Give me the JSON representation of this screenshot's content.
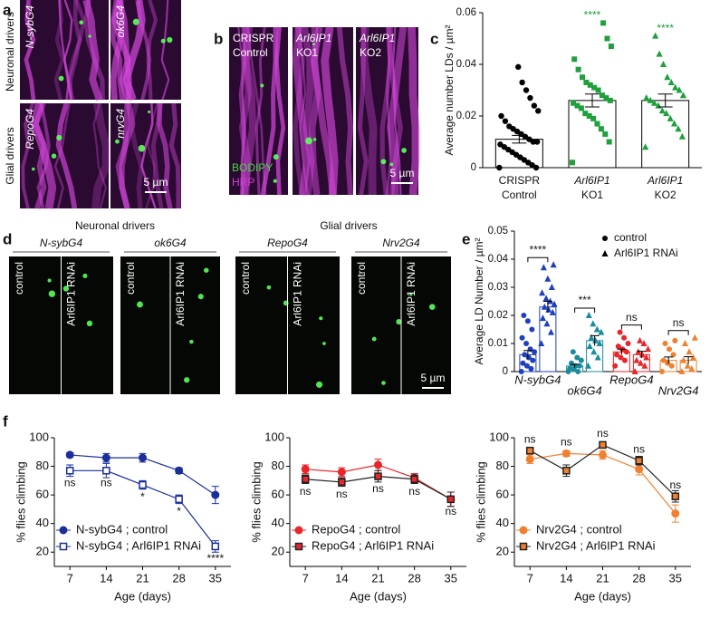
{
  "panel_labels": [
    "a",
    "b",
    "c",
    "d",
    "e",
    "f"
  ],
  "a": {
    "group_labels": [
      "Neuronal drivers",
      "Glial drivers"
    ],
    "image_labels": [
      "N-sybG4",
      "ok6G4",
      "RepoG4",
      "nrvG4"
    ],
    "scale": "5 µm"
  },
  "b": {
    "image_labels": [
      [
        "CRISPR",
        "Control"
      ],
      [
        "Arl6IP1",
        "KO1"
      ],
      [
        "Arl6IP1",
        "KO2"
      ]
    ],
    "stains": [
      "BODIPY",
      "HRP"
    ],
    "stain_colors": [
      "#3ddc3d",
      "#d040d8"
    ],
    "scale": "5 µm"
  },
  "c": {
    "type": "bar",
    "ylabel": "Average number LDs / µm²",
    "categories": [
      [
        "CRISPR",
        "Control"
      ],
      [
        "Arl6IP1",
        "KO1"
      ],
      [
        "Arl6IP1",
        "KO2"
      ]
    ],
    "values": [
      0.011,
      0.026,
      0.026
    ],
    "errors": [
      0.0015,
      0.0025,
      0.0025
    ],
    "points": [
      [
        0.0,
        0.0,
        0.001,
        0.002,
        0.003,
        0.004,
        0.005,
        0.006,
        0.007,
        0.008,
        0.009,
        0.01,
        0.01,
        0.011,
        0.012,
        0.013,
        0.014,
        0.015,
        0.016,
        0.018,
        0.02,
        0.022,
        0.024,
        0.027,
        0.03,
        0.033,
        0.039
      ],
      [
        0.002,
        0.01,
        0.013,
        0.015,
        0.017,
        0.019,
        0.02,
        0.021,
        0.023,
        0.024,
        0.025,
        0.026,
        0.027,
        0.028,
        0.03,
        0.031,
        0.032,
        0.033,
        0.035,
        0.038,
        0.042,
        0.047,
        0.05,
        0.056
      ],
      [
        0.008,
        0.012,
        0.015,
        0.017,
        0.019,
        0.021,
        0.022,
        0.024,
        0.025,
        0.026,
        0.027,
        0.028,
        0.03,
        0.031,
        0.033,
        0.035,
        0.04,
        0.044,
        0.051
      ]
    ],
    "colors": [
      "#000000",
      "#1fa03c",
      "#1fa03c"
    ],
    "markers": [
      "circle",
      "square",
      "triangle"
    ],
    "significance": [
      null,
      "****",
      "****"
    ],
    "ylim": [
      0,
      0.06
    ],
    "yticks": [
      0,
      0.02,
      0.04,
      0.06
    ]
  },
  "d": {
    "group_labels": [
      "Neuronal drivers",
      "Glial drivers"
    ],
    "drivers": [
      "N-sybG4",
      "ok6G4",
      "RepoG4",
      "Nrv2G4"
    ],
    "conditions": [
      "control",
      "Arl6IP1 RNAi"
    ],
    "scale": "5 µm"
  },
  "e": {
    "type": "bar",
    "ylabel": "Average LD Number / µm²",
    "categories": [
      "N-sybG4",
      "ok6G4",
      "RepoG4",
      "Nrv2G4"
    ],
    "colors": [
      "#1f3fbf",
      "#1a8c9c",
      "#e8262b",
      "#f08030"
    ],
    "series": [
      {
        "name": "control",
        "marker": "circle",
        "values": [
          0.006,
          0.002,
          0.007,
          0.004
        ],
        "errors": [
          0.0015,
          0.0006,
          0.001,
          0.0012
        ],
        "points": [
          [
            0,
            0.001,
            0.002,
            0.003,
            0.004,
            0.005,
            0.006,
            0.007,
            0.008,
            0.01,
            0.012,
            0.015,
            0.018,
            0.02
          ],
          [
            0,
            0,
            0.001,
            0.001,
            0.002,
            0.002,
            0.003,
            0.004,
            0.005,
            0.007
          ],
          [
            0.002,
            0.004,
            0.005,
            0.006,
            0.007,
            0.008,
            0.009,
            0.01,
            0.012,
            0.014
          ],
          [
            0,
            0.002,
            0.003,
            0.004,
            0.006,
            0.008,
            0.01,
            0.011
          ]
        ]
      },
      {
        "name": "Arl6IP1 RNAi",
        "marker": "triangle",
        "values": [
          0.023,
          0.011,
          0.006,
          0.004
        ],
        "errors": [
          0.002,
          0.0018,
          0.0012,
          0.0013
        ],
        "points": [
          [
            0.01,
            0.014,
            0.017,
            0.019,
            0.021,
            0.022,
            0.023,
            0.024,
            0.025,
            0.026,
            0.028,
            0.03,
            0.033,
            0.037,
            0.038
          ],
          [
            0.002,
            0.005,
            0.007,
            0.009,
            0.01,
            0.011,
            0.012,
            0.014,
            0.015,
            0.017,
            0.02
          ],
          [
            0,
            0.002,
            0.003,
            0.004,
            0.005,
            0.006,
            0.007,
            0.008,
            0.01,
            0.011
          ],
          [
            0,
            0.001,
            0.002,
            0.004,
            0.005,
            0.007,
            0.01,
            0.012
          ]
        ]
      }
    ],
    "significance": [
      "****",
      "***",
      "ns",
      "ns"
    ],
    "ylim": [
      0,
      0.05
    ],
    "yticks": [
      0,
      0.01,
      0.02,
      0.03,
      0.04,
      0.05
    ]
  },
  "f": {
    "charts": [
      {
        "type": "line",
        "ylabel": "% flies climbing",
        "xlabel": "Age (days)",
        "x": [
          7,
          14,
          21,
          28,
          35
        ],
        "xlim": [
          4,
          38
        ],
        "xticks": [
          7,
          14,
          21,
          28,
          35
        ],
        "ylim": [
          10,
          100
        ],
        "yticks": [
          20,
          40,
          60,
          80,
          100
        ],
        "series": [
          {
            "name": "N-sybG4 ; control",
            "color": "#1a2e9c",
            "fill": "#1a2e9c",
            "marker": "circle",
            "values": [
              88,
              86,
              86,
              77,
              60
            ],
            "errors": [
              1.5,
              3,
              3,
              2,
              6
            ]
          },
          {
            "name": "N-sybG4 ; Arl6IP1 RNAi",
            "color": "#1a2e9c",
            "fill": "#ffffff",
            "marker": "square",
            "values": [
              77,
              77,
              67,
              57,
              24
            ],
            "errors": [
              4,
              5,
              3,
              3,
              4
            ]
          }
        ],
        "annotations": [
          "ns",
          "ns",
          "*",
          "*",
          "****"
        ]
      },
      {
        "type": "line",
        "ylabel": "% flies climbing",
        "xlabel": "Age (days)",
        "x": [
          7,
          14,
          21,
          28,
          35
        ],
        "xlim": [
          4,
          38
        ],
        "xticks": [
          7,
          14,
          21,
          28,
          35
        ],
        "ylim": [
          10,
          100
        ],
        "yticks": [
          20,
          40,
          60,
          80,
          100
        ],
        "series": [
          {
            "name": "RepoG4 ; control",
            "color": "#e8262b",
            "fill": "#e8262b",
            "marker": "circle",
            "values": [
              78,
              76,
              81,
              72,
              57
            ],
            "errors": [
              3,
              3,
              4,
              3,
              5
            ]
          },
          {
            "name": "RepoG4 ; Arl6IP1 RNAi",
            "color": "#222222",
            "fill": "#e8262b",
            "marker": "square",
            "values": [
              71,
              69,
              73,
              71,
              57
            ],
            "errors": [
              3,
              3,
              4,
              3,
              5
            ]
          }
        ],
        "annotations": [
          "ns",
          "ns",
          "ns",
          "ns",
          "ns"
        ]
      },
      {
        "type": "line",
        "ylabel": "% flies climbing",
        "xlabel": "Age (days)",
        "x": [
          7,
          14,
          21,
          28,
          35
        ],
        "xlim": [
          4,
          38
        ],
        "xticks": [
          7,
          14,
          21,
          28,
          35
        ],
        "ylim": [
          10,
          100
        ],
        "yticks": [
          20,
          40,
          60,
          80,
          100
        ],
        "series": [
          {
            "name": "Nrv2G4 ; control",
            "color": "#f08030",
            "fill": "#f08030",
            "marker": "circle",
            "values": [
              85,
              89,
              88,
              78,
              47
            ],
            "errors": [
              3,
              2,
              3,
              4,
              6
            ]
          },
          {
            "name": "Nrv2G4 ; Arl6IP1 RNAi",
            "color": "#222222",
            "fill": "#f08030",
            "marker": "square",
            "values": [
              91,
              77,
              95,
              84,
              59
            ],
            "errors": [
              2,
              4,
              2,
              3,
              4
            ]
          }
        ],
        "annotations": [
          "ns",
          "ns",
          "ns",
          "ns",
          "ns"
        ]
      }
    ]
  }
}
